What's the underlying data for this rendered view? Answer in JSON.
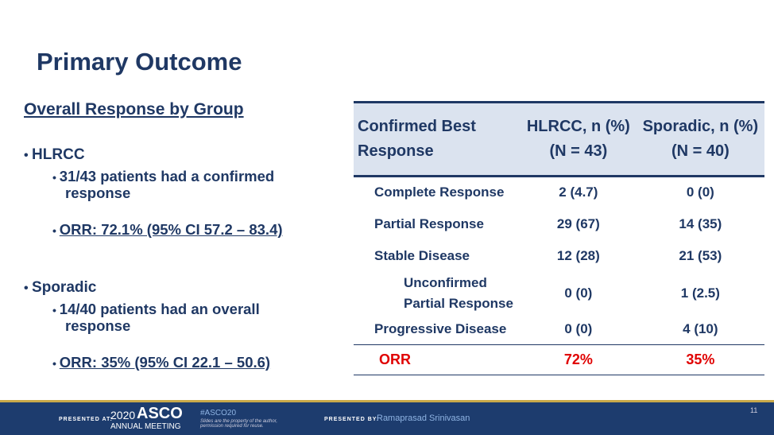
{
  "title": "Primary Outcome",
  "left": {
    "heading": "Overall Response by Group",
    "groups": [
      {
        "name": "HLRCC",
        "items": [
          "31/43 patients had a confirmed response",
          "ORR: 72.1% (95% CI 57.2 – 83.4)"
        ]
      },
      {
        "name": "Sporadic",
        "items": [
          "14/40 patients had an overall response",
          "ORR: 35% (95% CI 22.1 – 50.6)"
        ]
      }
    ]
  },
  "table": {
    "header": [
      "Confirmed Best Response",
      "HLRCC, n (%) (N = 43)",
      "Sporadic, n (%) (N = 40)"
    ],
    "rows": [
      [
        "Complete Response",
        "2  (4.7)",
        "0  (0)"
      ],
      [
        "Partial Response",
        "29  (67)",
        "14  (35)"
      ],
      [
        "Stable Disease",
        "12  (28)",
        "21  (53)"
      ],
      [
        "Unconfirmed Partial Response",
        "0  (0)",
        "1  (2.5)"
      ],
      [
        "Progressive Disease",
        "0  (0)",
        "4  (10)"
      ]
    ],
    "footer": [
      "ORR",
      "72%",
      "35%"
    ]
  },
  "footer": {
    "presented_at": "PRESENTED AT:",
    "year": "2020",
    "org": "ASCO",
    "meeting": "ANNUAL MEETING",
    "hashtag": "#ASCO20",
    "disclaimer": "Slides are the property of the author, permission required for reuse.",
    "presented_by": "PRESENTED BY:",
    "presenter": "Ramaprasad Srinivasan",
    "page": "11"
  }
}
